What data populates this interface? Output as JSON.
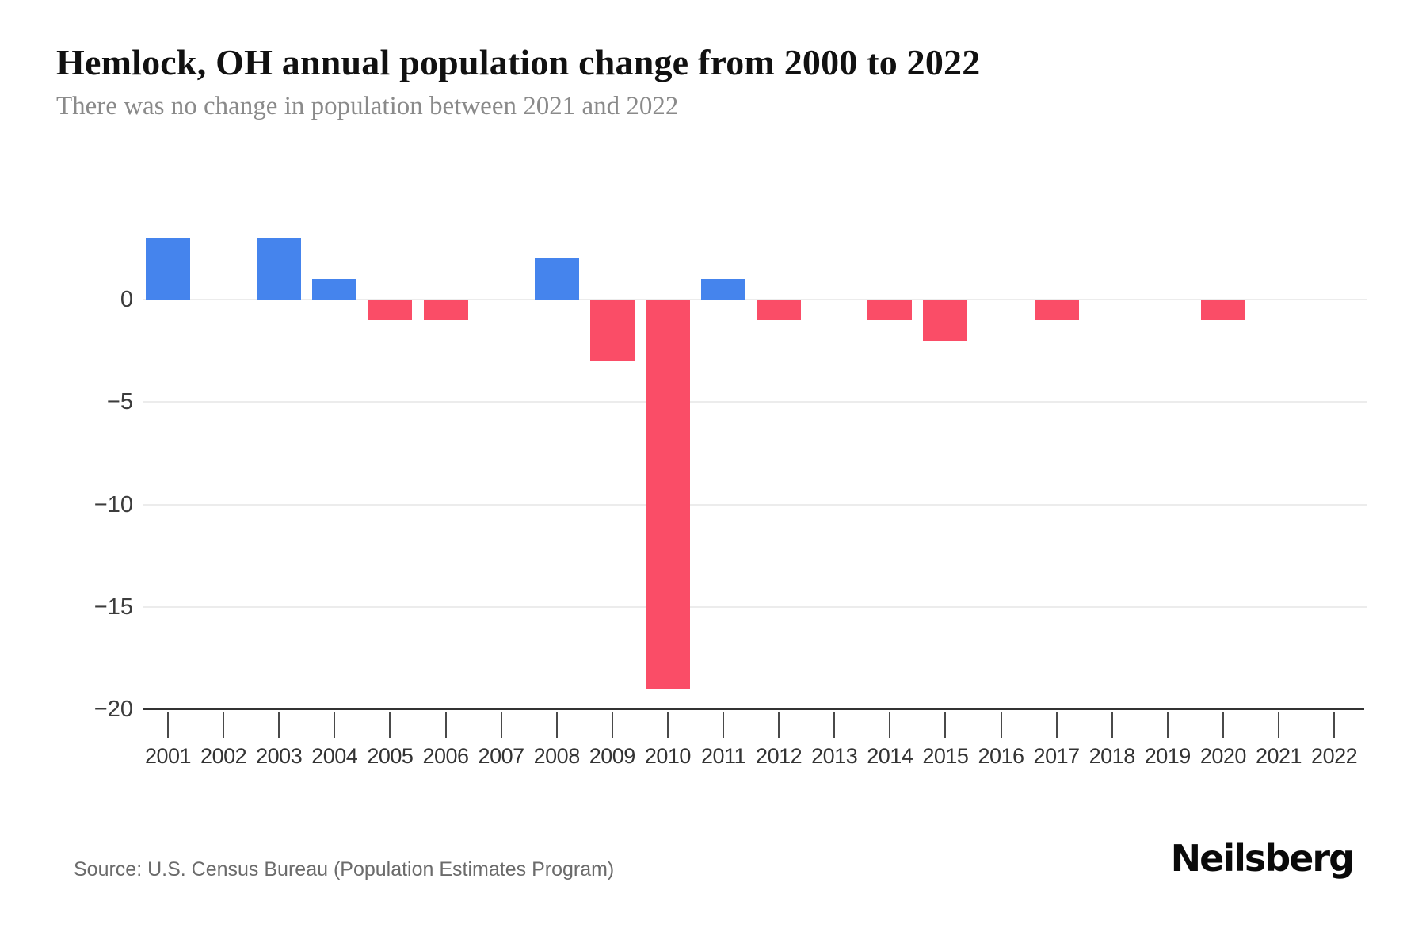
{
  "chart_data": {
    "type": "bar",
    "title": "Hemlock, OH annual population change from 2000 to 2022",
    "subtitle": "There was no change in population between 2021 and 2022",
    "categories": [
      "2001",
      "2002",
      "2003",
      "2004",
      "2005",
      "2006",
      "2007",
      "2008",
      "2009",
      "2010",
      "2011",
      "2012",
      "2013",
      "2014",
      "2015",
      "2016",
      "2017",
      "2018",
      "2019",
      "2020",
      "2021",
      "2022"
    ],
    "values": [
      3,
      0,
      3,
      1,
      -1,
      -1,
      0,
      2,
      -3,
      -19,
      1,
      -1,
      0,
      -1,
      -2,
      0,
      -1,
      0,
      0,
      -1,
      0,
      0
    ],
    "series_name": "Annual population change",
    "xlabel": "",
    "ylabel": "",
    "ylim": [
      -20,
      5
    ],
    "yticks": [
      0,
      -5,
      -10,
      -15,
      -20
    ],
    "ytick_labels": [
      "0",
      "−5",
      "−10",
      "−15",
      "−20"
    ],
    "grid": true,
    "legend_position": "none",
    "positive_color": "#4584ED",
    "negative_color": "#FA4D67",
    "gridline_color": "#ececec",
    "axis_color": "#333333"
  },
  "footer": {
    "source": "Source: U.S. Census Bureau (Population Estimates Program)",
    "brand": "Neilsberg"
  }
}
